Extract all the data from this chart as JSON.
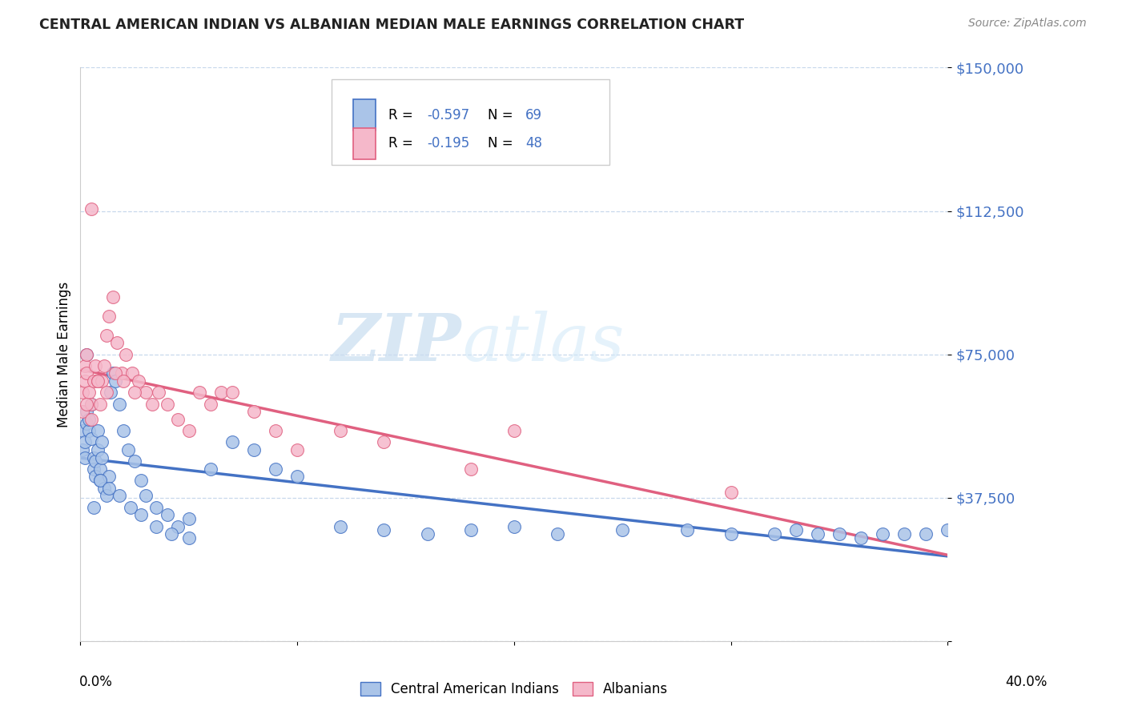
{
  "title": "CENTRAL AMERICAN INDIAN VS ALBANIAN MEDIAN MALE EARNINGS CORRELATION CHART",
  "source": "Source: ZipAtlas.com",
  "ylabel": "Median Male Earnings",
  "yticks": [
    0,
    37500,
    75000,
    112500,
    150000
  ],
  "ytick_labels": [
    "",
    "$37,500",
    "$75,000",
    "$112,500",
    "$150,000"
  ],
  "xlim": [
    0.0,
    0.4
  ],
  "ylim": [
    0,
    150000
  ],
  "blue_color": "#aac4e8",
  "blue_line": "#4472c4",
  "pink_color": "#f5b8ca",
  "pink_line": "#e06080",
  "watermark_zip": "ZIP",
  "watermark_atlas": "atlas",
  "legend_labels": [
    "Central American Indians",
    "Albanians"
  ],
  "blue_R": "-0.597",
  "blue_N": "69",
  "pink_R": "-0.195",
  "pink_N": "48",
  "blue_scatter_x": [
    0.001,
    0.001,
    0.002,
    0.002,
    0.003,
    0.003,
    0.004,
    0.004,
    0.005,
    0.005,
    0.006,
    0.006,
    0.007,
    0.007,
    0.008,
    0.008,
    0.009,
    0.009,
    0.01,
    0.01,
    0.011,
    0.012,
    0.013,
    0.014,
    0.015,
    0.016,
    0.018,
    0.02,
    0.022,
    0.025,
    0.028,
    0.03,
    0.035,
    0.04,
    0.045,
    0.05,
    0.06,
    0.07,
    0.08,
    0.09,
    0.1,
    0.12,
    0.14,
    0.16,
    0.18,
    0.2,
    0.22,
    0.25,
    0.28,
    0.3,
    0.32,
    0.33,
    0.34,
    0.35,
    0.36,
    0.37,
    0.38,
    0.39,
    0.4,
    0.003,
    0.006,
    0.009,
    0.013,
    0.018,
    0.023,
    0.028,
    0.035,
    0.042,
    0.05
  ],
  "blue_scatter_y": [
    55000,
    50000,
    52000,
    48000,
    57000,
    60000,
    55000,
    58000,
    62000,
    53000,
    48000,
    45000,
    43000,
    47000,
    50000,
    55000,
    45000,
    42000,
    52000,
    48000,
    40000,
    38000,
    43000,
    65000,
    70000,
    68000,
    62000,
    55000,
    50000,
    47000,
    42000,
    38000,
    35000,
    33000,
    30000,
    32000,
    45000,
    52000,
    50000,
    45000,
    43000,
    30000,
    29000,
    28000,
    29000,
    30000,
    28000,
    29000,
    29000,
    28000,
    28000,
    29000,
    28000,
    28000,
    27000,
    28000,
    28000,
    28000,
    29000,
    75000,
    35000,
    42000,
    40000,
    38000,
    35000,
    33000,
    30000,
    28000,
    27000
  ],
  "pink_scatter_x": [
    0.001,
    0.001,
    0.002,
    0.002,
    0.003,
    0.003,
    0.004,
    0.005,
    0.005,
    0.006,
    0.007,
    0.008,
    0.009,
    0.01,
    0.011,
    0.012,
    0.013,
    0.015,
    0.017,
    0.019,
    0.021,
    0.024,
    0.027,
    0.03,
    0.033,
    0.036,
    0.04,
    0.045,
    0.05,
    0.055,
    0.06,
    0.065,
    0.07,
    0.08,
    0.09,
    0.1,
    0.12,
    0.14,
    0.18,
    0.2,
    0.005,
    0.008,
    0.012,
    0.016,
    0.02,
    0.025,
    0.3,
    0.003
  ],
  "pink_scatter_y": [
    60000,
    65000,
    68000,
    72000,
    75000,
    70000,
    65000,
    58000,
    62000,
    68000,
    72000,
    68000,
    62000,
    68000,
    72000,
    80000,
    85000,
    90000,
    78000,
    70000,
    75000,
    70000,
    68000,
    65000,
    62000,
    65000,
    62000,
    58000,
    55000,
    65000,
    62000,
    65000,
    65000,
    60000,
    55000,
    50000,
    55000,
    52000,
    45000,
    55000,
    113000,
    68000,
    65000,
    70000,
    68000,
    65000,
    39000,
    62000
  ]
}
